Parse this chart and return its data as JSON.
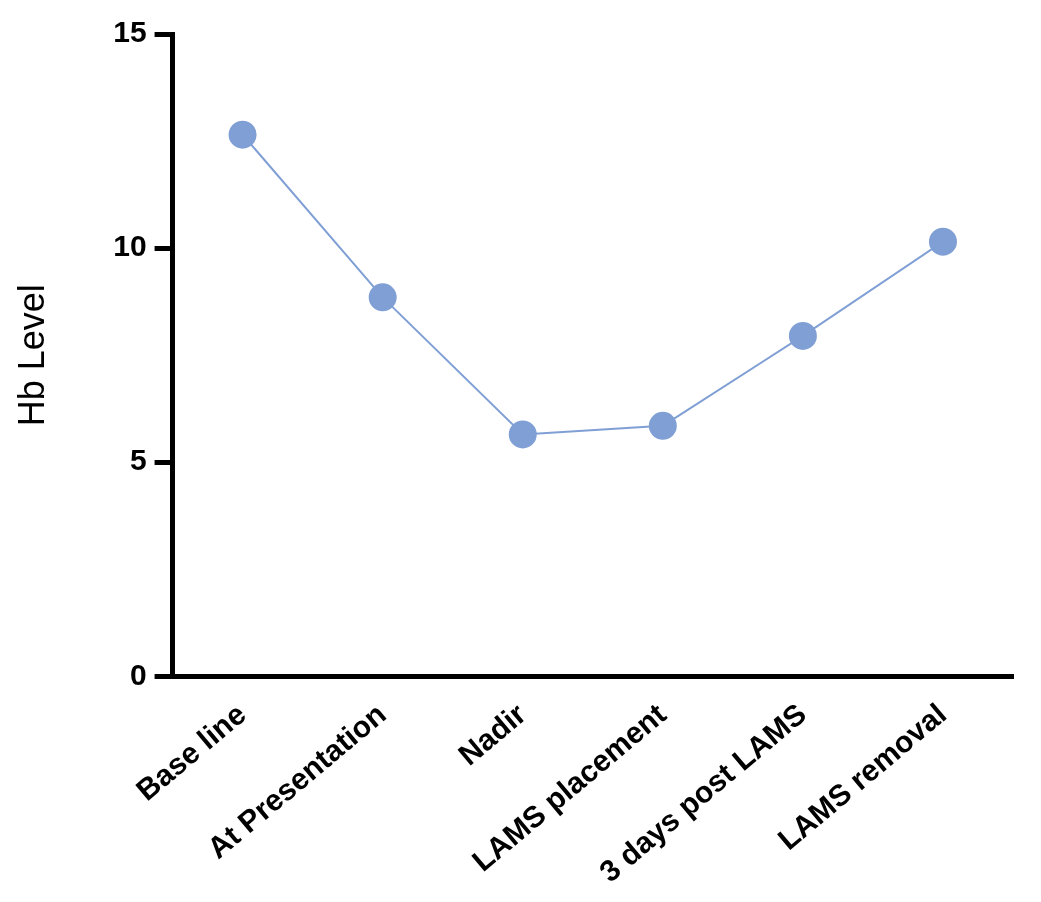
{
  "chart_data": {
    "type": "line",
    "ylabel": "Hb Level",
    "categories": [
      "Base line",
      "At Presentation",
      "Nadir",
      "LAMS placement",
      "3 days post LAMS",
      "LAMS removal"
    ],
    "series": [
      {
        "color": "#7f9fd5",
        "values": [
          12.65,
          8.85,
          5.65,
          5.85,
          7.95,
          10.15
        ]
      }
    ],
    "ylim": [
      0,
      15
    ],
    "yticks": [
      0,
      5,
      10,
      15
    ],
    "grid": false,
    "legend": false,
    "marker": "circle",
    "line_style": "solid"
  }
}
